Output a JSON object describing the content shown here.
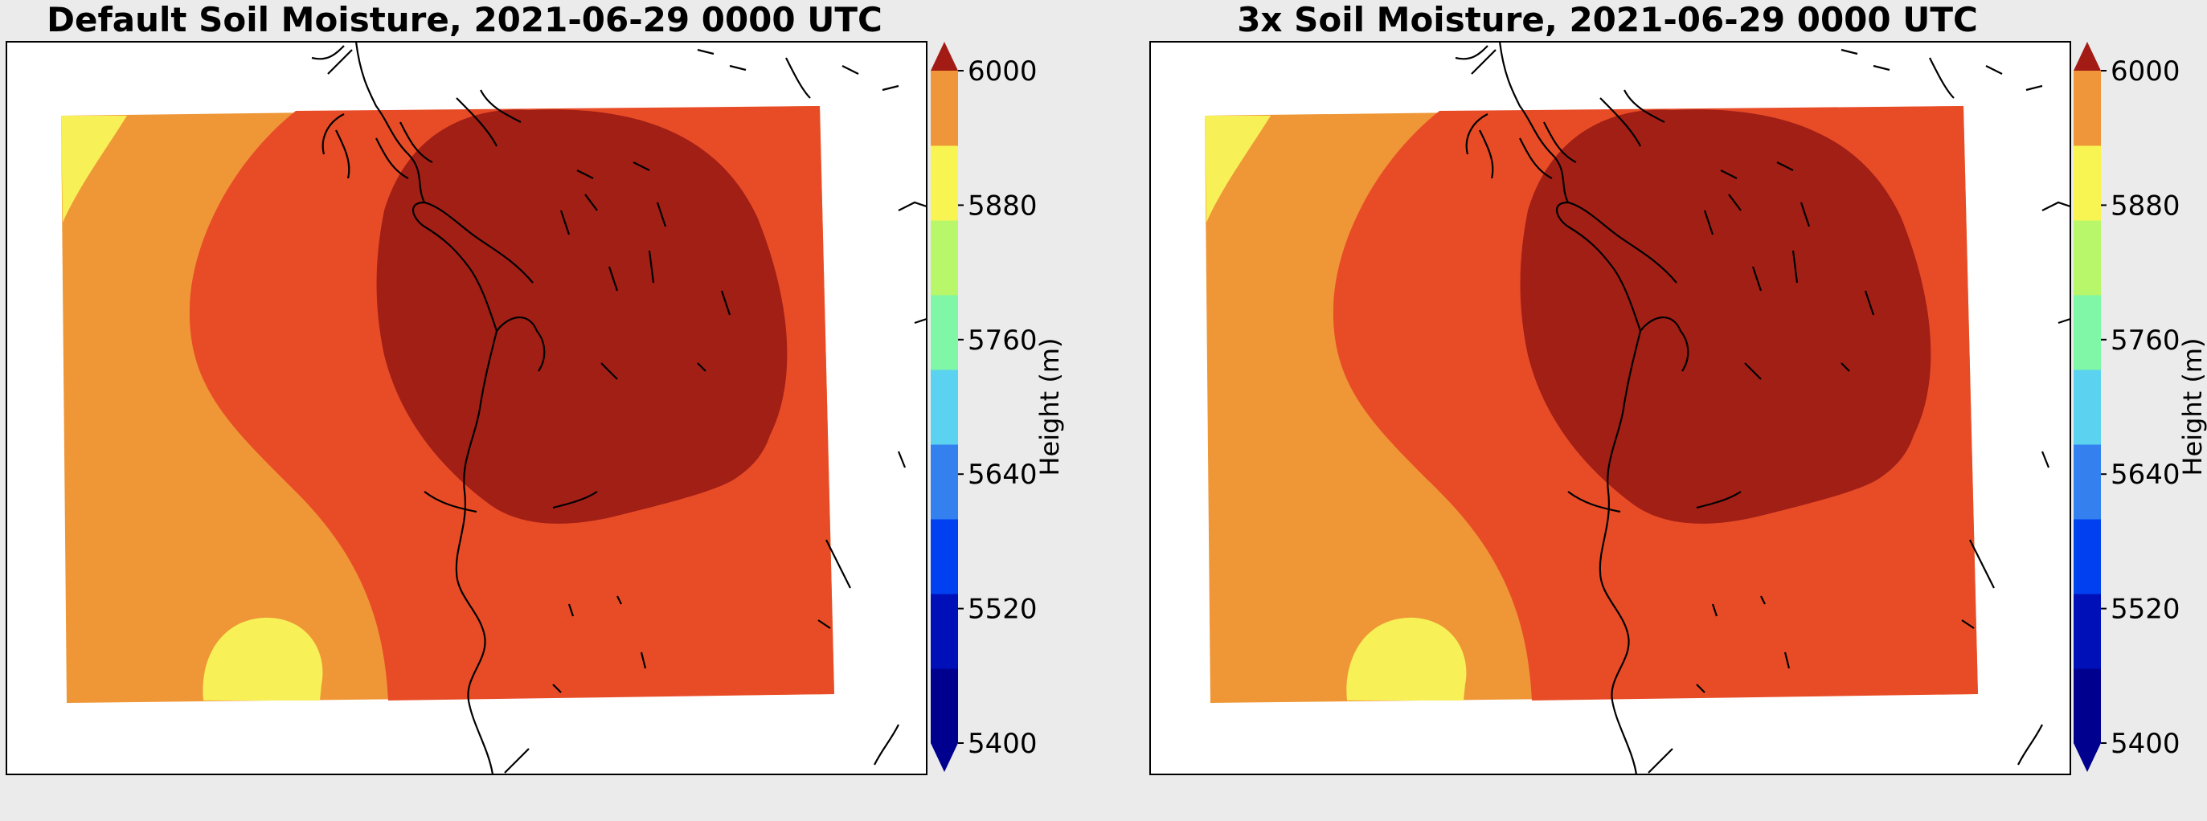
{
  "figure": {
    "panels": [
      {
        "title": "Default Soil Moisture, 2021-06-29 0000 UTC"
      },
      {
        "title": "3x Soil Moisture, 2021-06-29 0000 UTC"
      }
    ],
    "colorbar_label": "Height (m)",
    "colorbar_ticks": [
      "5400",
      "5520",
      "5640",
      "5760",
      "5880",
      "6000"
    ],
    "colorbar_levels": [
      5400,
      5440,
      5480,
      5520,
      5560,
      5600,
      5640,
      5680,
      5720,
      5760,
      5800,
      5840,
      5880,
      5920,
      5960,
      6000
    ],
    "colorbar_colors": [
      "#00008f",
      "#0010b8",
      "#0040f0",
      "#3580ef",
      "#5ad2f0",
      "#80f7a6",
      "#b8f66a",
      "#f8f552",
      "#f0963a",
      "#e84c28",
      "#a21c15"
    ],
    "colors": {
      "background": "#ebebeb",
      "yellow": "#f7f057",
      "orange": "#ef9637",
      "red_orange": "#e84c27",
      "dark_red": "#a21f16",
      "coast": "#000000"
    }
  }
}
